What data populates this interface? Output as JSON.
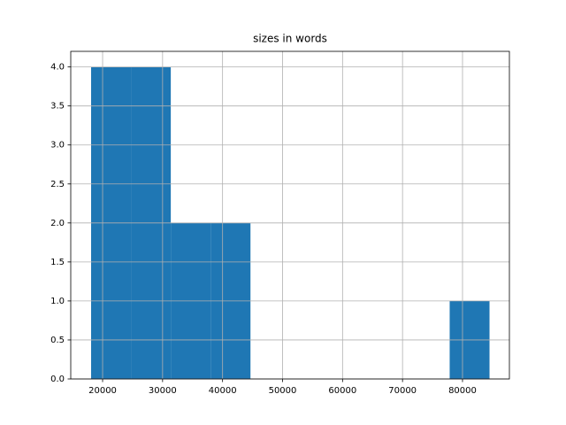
{
  "chart_data": {
    "type": "histogram",
    "title": "sizes in words",
    "bins": [
      18083,
      24725,
      31367,
      38009,
      44651,
      51293,
      57935,
      64577,
      71219,
      77861,
      84503
    ],
    "values": [
      4,
      4,
      2,
      2,
      0,
      0,
      0,
      0,
      0,
      1
    ],
    "color": "#1f77b4",
    "xlim": [
      14690,
      87817
    ],
    "xticks": [
      20000,
      30000,
      40000,
      50000,
      60000,
      70000,
      80000
    ],
    "ylim": [
      0,
      4.2
    ],
    "yticks": [
      {
        "value": 0,
        "label": "0.0"
      },
      {
        "value": 0.5,
        "label": "0.5"
      },
      {
        "value": 1,
        "label": "1.0"
      },
      {
        "value": 1.5,
        "label": "1.5"
      },
      {
        "value": 2,
        "label": "2.0"
      },
      {
        "value": 2.5,
        "label": "2.5"
      },
      {
        "value": 3,
        "label": "3.0"
      },
      {
        "value": 3.5,
        "label": "3.5"
      },
      {
        "value": 4,
        "label": "4.0"
      }
    ],
    "grid": true
  }
}
